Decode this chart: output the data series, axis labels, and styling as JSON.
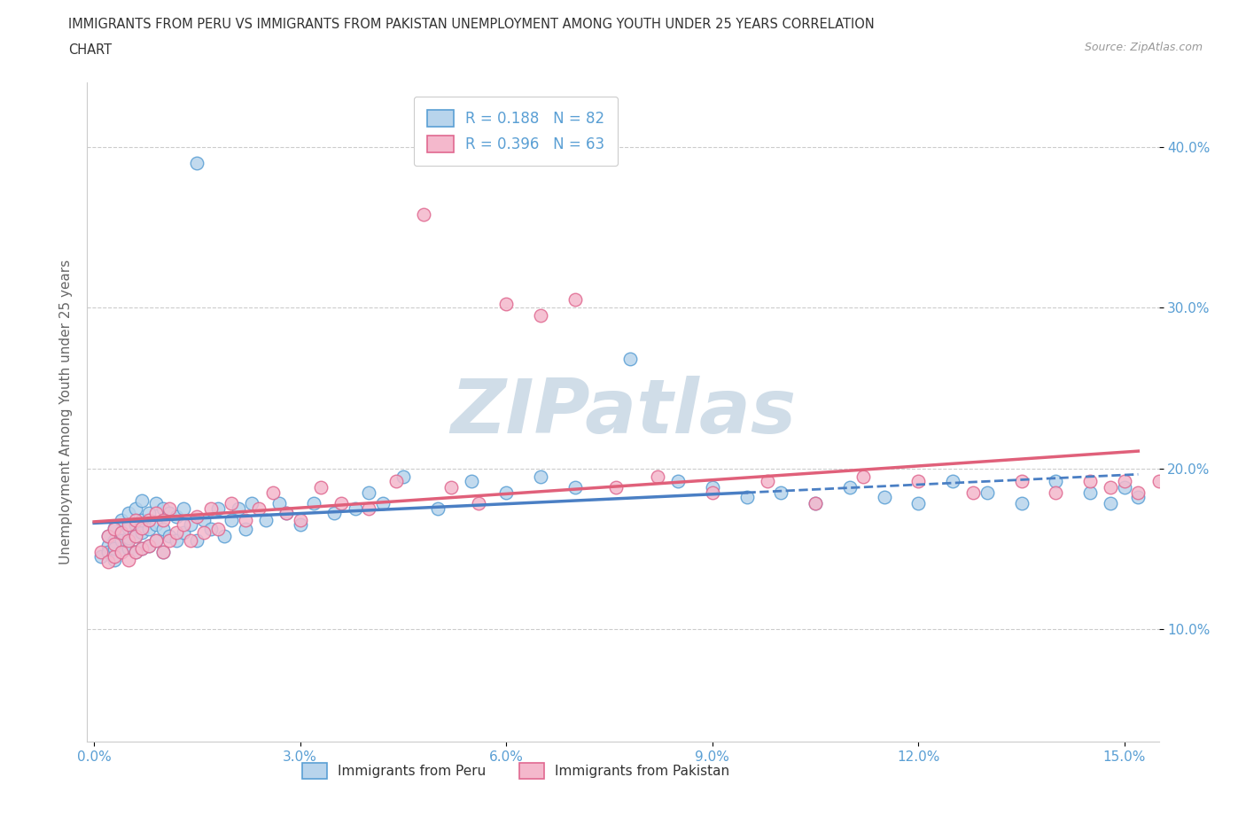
{
  "title_line1": "IMMIGRANTS FROM PERU VS IMMIGRANTS FROM PAKISTAN UNEMPLOYMENT AMONG YOUTH UNDER 25 YEARS CORRELATION",
  "title_line2": "CHART",
  "source_text": "Source: ZipAtlas.com",
  "ylabel": "Unemployment Among Youth under 25 years",
  "legend_label1": "Immigrants from Peru",
  "legend_label2": "Immigrants from Pakistan",
  "R1": 0.188,
  "N1": 82,
  "R2": 0.396,
  "N2": 63,
  "xlim_min": -0.001,
  "xlim_max": 0.155,
  "ylim_min": 0.03,
  "ylim_max": 0.44,
  "xtick_vals": [
    0.0,
    0.03,
    0.06,
    0.09,
    0.12,
    0.15
  ],
  "ytick_vals": [
    0.1,
    0.2,
    0.3,
    0.4
  ],
  "color_peru_fill": "#b8d4ec",
  "color_peru_edge": "#5a9fd4",
  "color_pak_fill": "#f4b8cc",
  "color_pak_edge": "#e06890",
  "color_trend_peru": "#4a7fc4",
  "color_trend_pak": "#e0607a",
  "color_grid": "#cccccc",
  "color_title": "#333333",
  "color_source": "#999999",
  "color_axis_tick": "#5a9fd4",
  "color_ylabel": "#666666",
  "peru_x": [
    0.001,
    0.002,
    0.002,
    0.002,
    0.003,
    0.003,
    0.003,
    0.003,
    0.004,
    0.004,
    0.004,
    0.004,
    0.005,
    0.005,
    0.005,
    0.005,
    0.006,
    0.006,
    0.006,
    0.006,
    0.007,
    0.007,
    0.007,
    0.007,
    0.008,
    0.008,
    0.008,
    0.009,
    0.009,
    0.009,
    0.01,
    0.01,
    0.01,
    0.011,
    0.011,
    0.012,
    0.012,
    0.013,
    0.013,
    0.014,
    0.015,
    0.015,
    0.016,
    0.017,
    0.018,
    0.019,
    0.02,
    0.021,
    0.022,
    0.023,
    0.025,
    0.027,
    0.028,
    0.03,
    0.032,
    0.035,
    0.038,
    0.04,
    0.042,
    0.045,
    0.05,
    0.055,
    0.06,
    0.065,
    0.07,
    0.078,
    0.085,
    0.09,
    0.095,
    0.1,
    0.105,
    0.11,
    0.115,
    0.12,
    0.125,
    0.13,
    0.135,
    0.14,
    0.145,
    0.148,
    0.15,
    0.152
  ],
  "peru_y": [
    0.145,
    0.152,
    0.148,
    0.158,
    0.143,
    0.155,
    0.15,
    0.163,
    0.148,
    0.16,
    0.155,
    0.168,
    0.15,
    0.157,
    0.163,
    0.172,
    0.148,
    0.158,
    0.165,
    0.175,
    0.15,
    0.16,
    0.168,
    0.18,
    0.152,
    0.162,
    0.172,
    0.155,
    0.165,
    0.178,
    0.148,
    0.162,
    0.175,
    0.158,
    0.172,
    0.155,
    0.17,
    0.16,
    0.175,
    0.165,
    0.39,
    0.155,
    0.168,
    0.162,
    0.175,
    0.158,
    0.168,
    0.175,
    0.162,
    0.178,
    0.168,
    0.178,
    0.172,
    0.165,
    0.178,
    0.172,
    0.175,
    0.185,
    0.178,
    0.195,
    0.175,
    0.192,
    0.185,
    0.195,
    0.188,
    0.268,
    0.192,
    0.188,
    0.182,
    0.185,
    0.178,
    0.188,
    0.182,
    0.178,
    0.192,
    0.185,
    0.178,
    0.192,
    0.185,
    0.178,
    0.188,
    0.182
  ],
  "pak_x": [
    0.001,
    0.002,
    0.002,
    0.003,
    0.003,
    0.003,
    0.004,
    0.004,
    0.005,
    0.005,
    0.005,
    0.006,
    0.006,
    0.006,
    0.007,
    0.007,
    0.008,
    0.008,
    0.009,
    0.009,
    0.01,
    0.01,
    0.011,
    0.011,
    0.012,
    0.013,
    0.014,
    0.015,
    0.016,
    0.017,
    0.018,
    0.02,
    0.022,
    0.024,
    0.026,
    0.028,
    0.03,
    0.033,
    0.036,
    0.04,
    0.044,
    0.048,
    0.052,
    0.056,
    0.06,
    0.065,
    0.07,
    0.076,
    0.082,
    0.09,
    0.098,
    0.105,
    0.112,
    0.12,
    0.128,
    0.135,
    0.14,
    0.145,
    0.148,
    0.15,
    0.152,
    0.155,
    0.158
  ],
  "pak_y": [
    0.148,
    0.142,
    0.158,
    0.145,
    0.153,
    0.162,
    0.148,
    0.16,
    0.143,
    0.155,
    0.165,
    0.148,
    0.158,
    0.168,
    0.15,
    0.163,
    0.152,
    0.168,
    0.155,
    0.172,
    0.148,
    0.168,
    0.155,
    0.175,
    0.16,
    0.165,
    0.155,
    0.17,
    0.16,
    0.175,
    0.162,
    0.178,
    0.168,
    0.175,
    0.185,
    0.172,
    0.168,
    0.188,
    0.178,
    0.175,
    0.192,
    0.358,
    0.188,
    0.178,
    0.302,
    0.295,
    0.305,
    0.188,
    0.195,
    0.185,
    0.192,
    0.178,
    0.195,
    0.192,
    0.185,
    0.192,
    0.185,
    0.192,
    0.188,
    0.192,
    0.185,
    0.192,
    0.195
  ],
  "peru_trend_x_end": 0.095,
  "pak_trend_x_end": 0.152,
  "watermark_text": "ZIPatlas"
}
